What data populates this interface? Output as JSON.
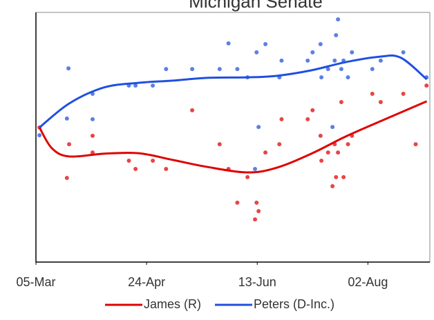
{
  "chart_data": {
    "type": "scatter",
    "title": "Michigan Senate",
    "xlim": [
      0,
      178
    ],
    "ylim": [
      0,
      100
    ],
    "xticks": [
      {
        "value": 0,
        "label": "05-Mar"
      },
      {
        "value": 50,
        "label": "24-Apr"
      },
      {
        "value": 100,
        "label": "13-Jun"
      },
      {
        "value": 150,
        "label": "02-Aug"
      }
    ],
    "legend": "bottom",
    "series": [
      {
        "name": "James (R)",
        "color": "#e84545",
        "line_color": "#e00000",
        "x": [
          1.6,
          14,
          15,
          25.6,
          25.6,
          42,
          45,
          52.8,
          58.8,
          70.6,
          83,
          87,
          91,
          95.6,
          99,
          99.7,
          100.6,
          103.7,
          110,
          111,
          122.8,
          125,
          128.6,
          129,
          132,
          134,
          135,
          135.6,
          136.5,
          138,
          139,
          141,
          142.8,
          152,
          155.8,
          166,
          171.6,
          176.5
        ],
        "values": [
          53.9,
          33.7,
          47.2,
          50.6,
          43.9,
          40.6,
          37.3,
          40.6,
          37.3,
          60.8,
          47.2,
          37.3,
          23.8,
          34,
          17.1,
          23.8,
          20.4,
          43.9,
          47.2,
          57.2,
          57.2,
          60.8,
          50.6,
          40.6,
          43.9,
          30.4,
          47.2,
          34,
          43.9,
          64.1,
          34,
          47.2,
          50.6,
          67.4,
          64.1,
          67.4,
          47.2,
          70.7
        ],
        "trend_x": [
          1.6,
          7.2,
          15,
          30.6,
          46.3,
          61.9,
          77.5,
          95.6,
          108.8,
          124.4,
          140,
          155.6,
          176.6
        ],
        "trend_values": [
          53.9,
          45.6,
          42.3,
          43.4,
          43.6,
          40.9,
          38.1,
          35.9,
          37.8,
          43.4,
          50.3,
          56.4,
          64.4
        ]
      },
      {
        "name": "Peters (D-Inc.)",
        "color": "#5b7fe6",
        "line_color": "#1f4fe0",
        "x": [
          1.6,
          14.7,
          14,
          25.6,
          25.6,
          42,
          45,
          52.8,
          58.8,
          70.6,
          83,
          87,
          91,
          95.6,
          99,
          99.7,
          100.6,
          103.7,
          110,
          111,
          122.8,
          125,
          128.6,
          129,
          132,
          134,
          135,
          135.6,
          136.5,
          138,
          139,
          141,
          142.8,
          152,
          155.8,
          166,
          176.5
        ],
        "values": [
          50.8,
          77.6,
          57.5,
          67.4,
          57.2,
          70.7,
          70.7,
          70.7,
          77.3,
          77.3,
          77.3,
          87.6,
          77.3,
          74,
          37.3,
          84,
          54.1,
          87.3,
          74,
          80.7,
          80.7,
          84,
          87.3,
          74,
          77.3,
          54.1,
          80.7,
          90.9,
          97.2,
          77.3,
          80.7,
          74,
          84,
          77.3,
          80.7,
          84,
          74
        ],
        "trend_x": [
          1.6,
          15,
          30.6,
          46.3,
          61.9,
          77.5,
          95.6,
          108.8,
          124.4,
          140,
          155.6,
          165,
          176.6
        ],
        "trend_values": [
          53.9,
          63.5,
          69.9,
          71.8,
          72.7,
          73.8,
          74,
          74.6,
          76.8,
          80.1,
          82.3,
          81.8,
          73.2
        ]
      }
    ]
  }
}
